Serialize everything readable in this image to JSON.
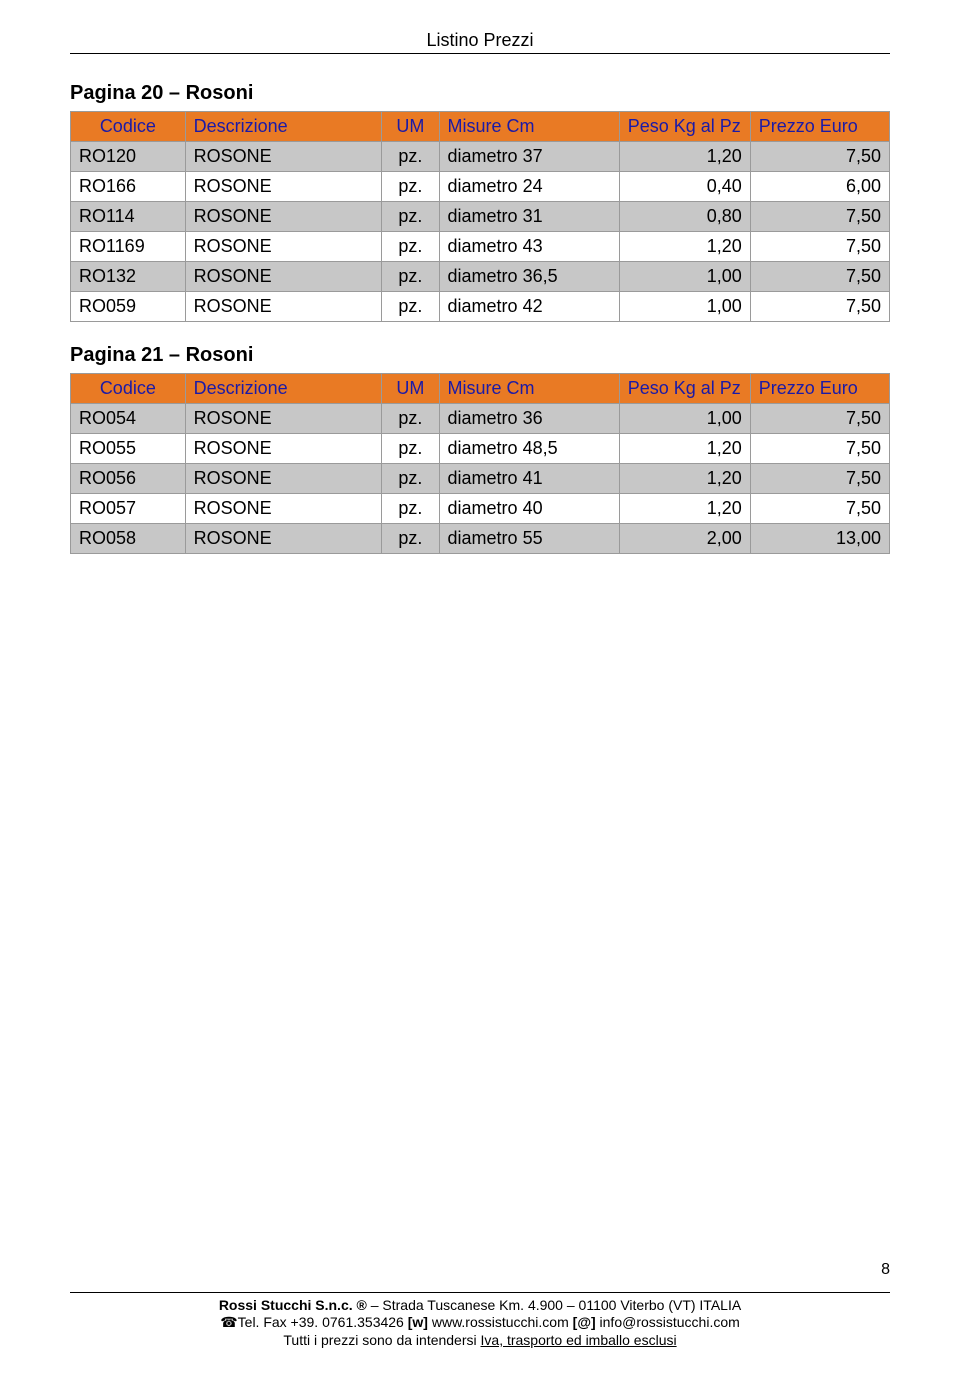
{
  "document": {
    "title": "Listino Prezzi",
    "page_number": "8"
  },
  "sections": [
    {
      "title": "Pagina 20 – Rosoni",
      "headers": {
        "codice": "Codice",
        "descrizione": "Descrizione",
        "um": "UM",
        "misure": "Misure Cm",
        "peso": "Peso Kg al Pz",
        "prezzo": "Prezzo Euro"
      },
      "rows": [
        {
          "codice": "RO120",
          "desc": "ROSONE",
          "um": "pz.",
          "misure": "diametro 37",
          "peso": "1,20",
          "prezzo": "7,50"
        },
        {
          "codice": "RO166",
          "desc": "ROSONE",
          "um": "pz.",
          "misure": "diametro 24",
          "peso": "0,40",
          "prezzo": "6,00"
        },
        {
          "codice": "RO114",
          "desc": "ROSONE",
          "um": "pz.",
          "misure": "diametro 31",
          "peso": "0,80",
          "prezzo": "7,50"
        },
        {
          "codice": "RO1169",
          "desc": "ROSONE",
          "um": "pz.",
          "misure": "diametro 43",
          "peso": "1,20",
          "prezzo": "7,50"
        },
        {
          "codice": "RO132",
          "desc": "ROSONE",
          "um": "pz.",
          "misure": "diametro 36,5",
          "peso": "1,00",
          "prezzo": "7,50"
        },
        {
          "codice": "RO059",
          "desc": "ROSONE",
          "um": "pz.",
          "misure": "diametro 42",
          "peso": "1,00",
          "prezzo": "7,50"
        }
      ]
    },
    {
      "title": "Pagina 21 – Rosoni",
      "headers": {
        "codice": "Codice",
        "descrizione": "Descrizione",
        "um": "UM",
        "misure": "Misure Cm",
        "peso": "Peso Kg al Pz",
        "prezzo": "Prezzo Euro"
      },
      "rows": [
        {
          "codice": "RO054",
          "desc": "ROSONE",
          "um": "pz.",
          "misure": "diametro 36",
          "peso": "1,00",
          "prezzo": "7,50"
        },
        {
          "codice": "RO055",
          "desc": "ROSONE",
          "um": "pz.",
          "misure": "diametro 48,5",
          "peso": "1,20",
          "prezzo": "7,50"
        },
        {
          "codice": "RO056",
          "desc": "ROSONE",
          "um": "pz.",
          "misure": "diametro 41",
          "peso": "1,20",
          "prezzo": "7,50"
        },
        {
          "codice": "RO057",
          "desc": "ROSONE",
          "um": "pz.",
          "misure": "diametro 40",
          "peso": "1,20",
          "prezzo": "7,50"
        },
        {
          "codice": "RO058",
          "desc": "ROSONE",
          "um": "pz.",
          "misure": "diametro 55",
          "peso": "2,00",
          "prezzo": "13,00"
        }
      ]
    }
  ],
  "footer": {
    "company": "Rossi Stucchi S.n.c. ®",
    "address_sep": " – ",
    "address": "Strada Tuscanese Km. 4.900 – 01100 Viterbo (VT) ITALIA",
    "phone_icon": "☎",
    "phone_label": "Tel. Fax +39. 0761.353426 ",
    "web_tag": "[w]",
    "web": " www.rossistucchi.com ",
    "email_tag": "[@]",
    "email": " info@rossistucchi.com",
    "note_prefix": "Tutti i prezzi sono da intendersi ",
    "note_underline": "Iva, trasporto ed imballo esclusi"
  },
  "style": {
    "header_bg": "#e97a24",
    "header_text": "#1a1aa8",
    "row_alt_bg": "#c7c7c7",
    "border_color": "#9a9a9a",
    "body_font": "Arial",
    "title_fontsize": 18,
    "section_fontsize": 20,
    "table_fontsize": 18,
    "footer_fontsize": 14
  }
}
